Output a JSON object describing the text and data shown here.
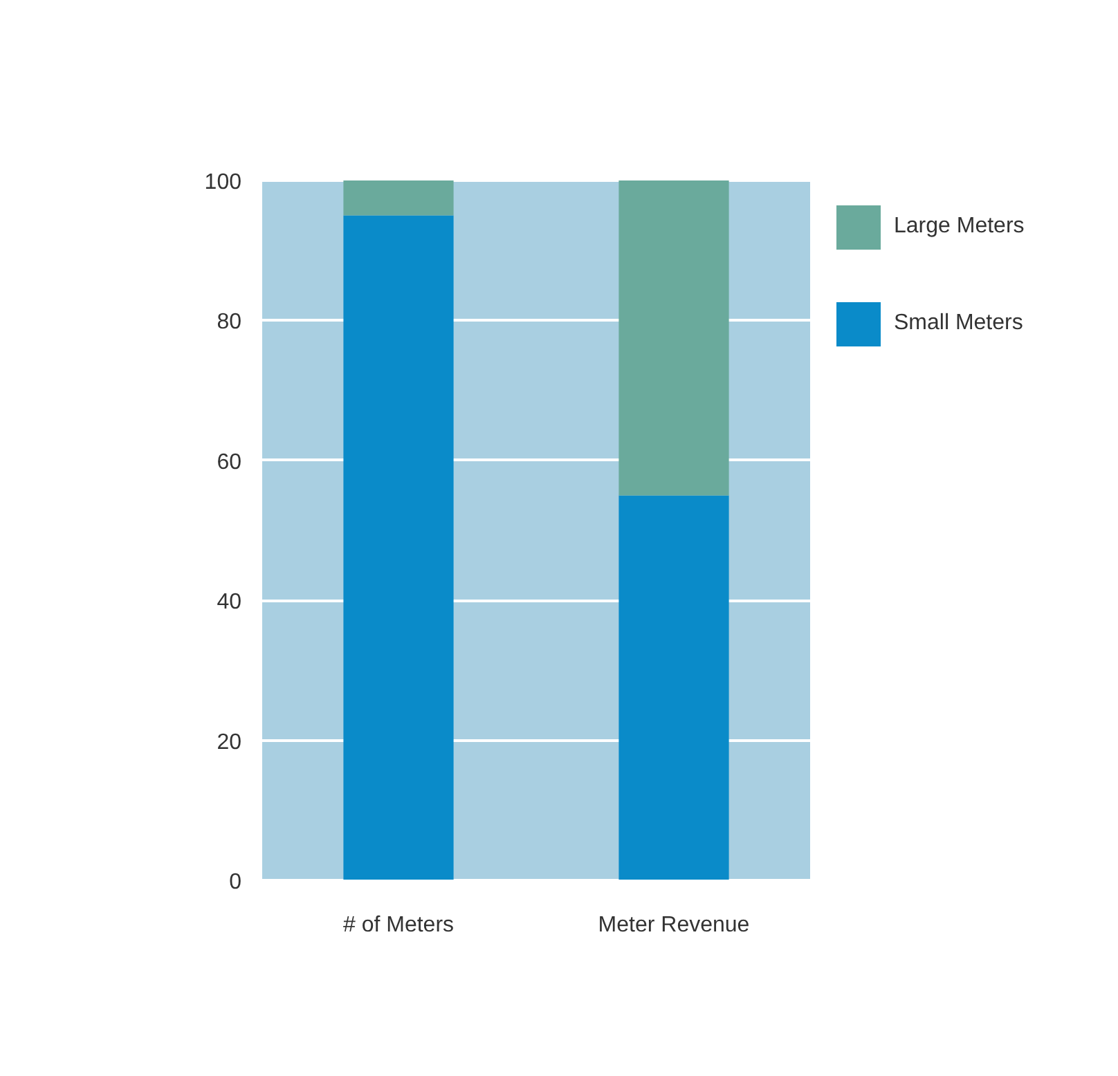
{
  "chart_data": {
    "type": "bar",
    "stacked": true,
    "categories": [
      "# of Meters",
      "Meter Revenue"
    ],
    "series": [
      {
        "name": "Small Meters",
        "color": "#0a8bc9",
        "values": [
          95,
          55
        ]
      },
      {
        "name": "Large Meters",
        "color": "#6aaa9c",
        "values": [
          5,
          45
        ]
      }
    ],
    "ylim": [
      0,
      100
    ],
    "yticks": [
      0,
      20,
      40,
      60,
      80,
      100
    ],
    "grid": "y",
    "legend": "top right"
  }
}
